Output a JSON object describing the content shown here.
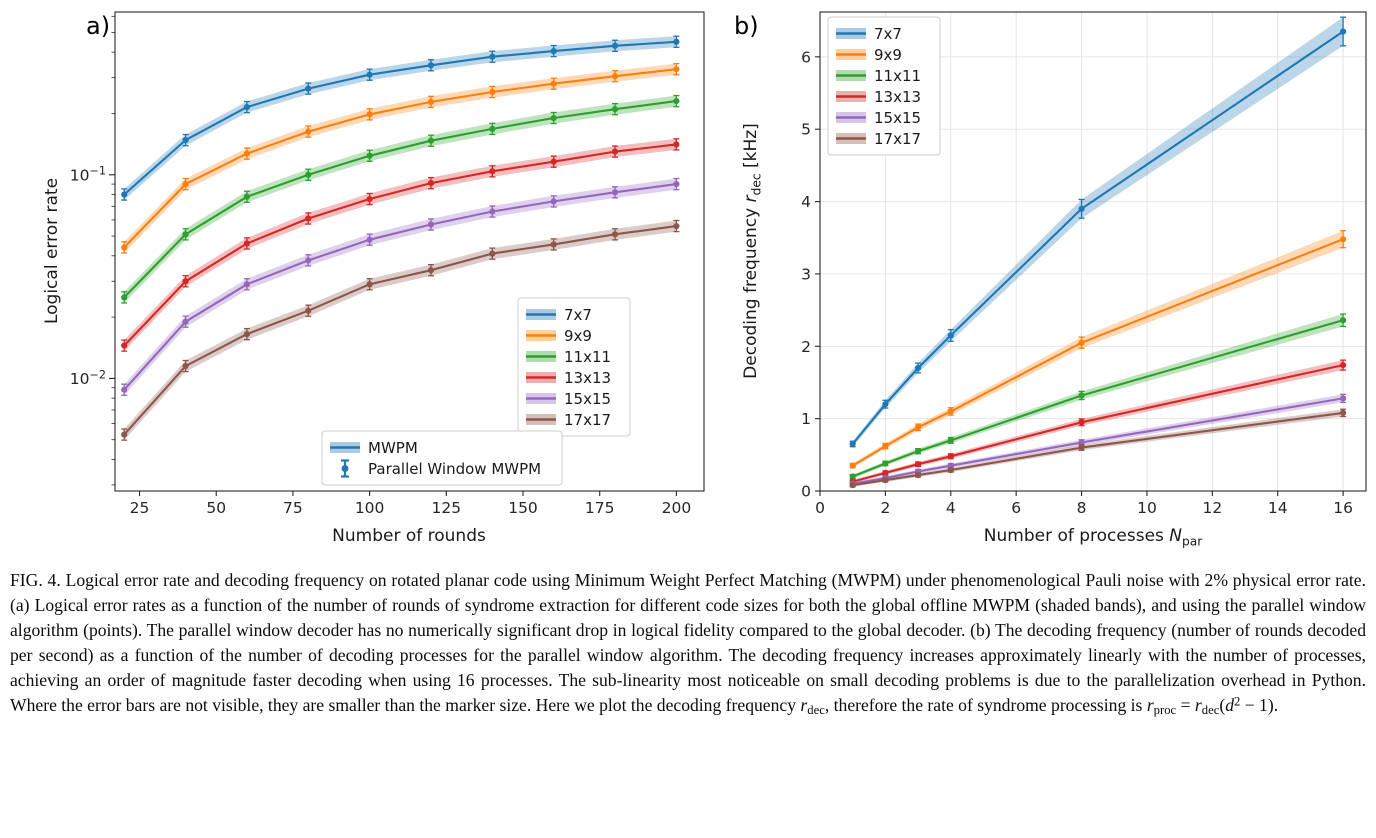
{
  "chart_data": [
    {
      "id": "a",
      "type": "line",
      "panel_label": "a)",
      "xlabel": "Number of rounds",
      "ylabel": "Logical error rate",
      "xscale": "linear",
      "yscale": "log",
      "xlim": [
        17,
        209
      ],
      "ylim": [
        0.0028,
        0.63
      ],
      "xticks": [
        25,
        50,
        75,
        100,
        125,
        150,
        175,
        200
      ],
      "yticks": [
        {
          "v": 0.01,
          "label": [
            {
              "t": "10",
              "s": ""
            },
            {
              "t": "−2",
              "s": "sup"
            }
          ]
        },
        {
          "v": 0.1,
          "label": [
            {
              "t": "10",
              "s": ""
            },
            {
              "t": "−1",
              "s": "sup"
            }
          ]
        }
      ],
      "grid": false,
      "x": [
        20,
        40,
        60,
        80,
        100,
        120,
        140,
        160,
        180,
        200
      ],
      "series": [
        {
          "name": "7x7",
          "color": "#1f77b4",
          "values": [
            0.08,
            0.148,
            0.215,
            0.265,
            0.31,
            0.345,
            0.38,
            0.405,
            0.43,
            0.45
          ]
        },
        {
          "name": "9x9",
          "color": "#ff7f0e",
          "values": [
            0.044,
            0.09,
            0.127,
            0.163,
            0.198,
            0.228,
            0.255,
            0.28,
            0.305,
            0.33
          ]
        },
        {
          "name": "11x11",
          "color": "#2ca02c",
          "values": [
            0.025,
            0.051,
            0.078,
            0.1,
            0.124,
            0.147,
            0.168,
            0.19,
            0.21,
            0.23
          ]
        },
        {
          "name": "13x13",
          "color": "#d62728",
          "values": [
            0.0145,
            0.03,
            0.046,
            0.061,
            0.076,
            0.091,
            0.104,
            0.116,
            0.13,
            0.141
          ]
        },
        {
          "name": "15x15",
          "color": "#9467bd",
          "values": [
            0.0088,
            0.019,
            0.029,
            0.038,
            0.048,
            0.057,
            0.066,
            0.074,
            0.082,
            0.09
          ]
        },
        {
          "name": "17x17",
          "color": "#8c564b",
          "values": [
            0.0053,
            0.0115,
            0.0165,
            0.0215,
            0.029,
            0.034,
            0.041,
            0.0455,
            0.051,
            0.056
          ]
        }
      ],
      "legend_extra": [
        {
          "label": "MWPM",
          "type": "band",
          "color": "#1f77b4"
        },
        {
          "label": "Parallel Window MWPM",
          "type": "errorbar",
          "color": "#1f77b4"
        }
      ]
    },
    {
      "id": "b",
      "type": "line",
      "panel_label": "b)",
      "xlabel": [
        {
          "t": "Number of processes ",
          "s": ""
        },
        {
          "t": "N",
          "s": "i"
        },
        {
          "t": "par",
          "s": "sub"
        }
      ],
      "ylabel": [
        {
          "t": "Decoding frequency ",
          "s": ""
        },
        {
          "t": "r",
          "s": "i"
        },
        {
          "t": "dec",
          "s": "sub"
        },
        {
          "t": " [kHz]",
          "s": ""
        }
      ],
      "xscale": "linear",
      "yscale": "linear",
      "xlim": [
        0,
        16.7
      ],
      "ylim": [
        0,
        6.62
      ],
      "xticks": [
        0,
        2,
        4,
        6,
        8,
        10,
        12,
        14,
        16
      ],
      "yticks": [
        {
          "v": 0,
          "label": "0"
        },
        {
          "v": 1,
          "label": "1"
        },
        {
          "v": 2,
          "label": "2"
        },
        {
          "v": 3,
          "label": "3"
        },
        {
          "v": 4,
          "label": "4"
        },
        {
          "v": 5,
          "label": "5"
        },
        {
          "v": 6,
          "label": "6"
        }
      ],
      "grid": true,
      "x": [
        1,
        2,
        3,
        4,
        8,
        16
      ],
      "series": [
        {
          "name": "7x7",
          "color": "#1f77b4",
          "values": [
            0.65,
            1.2,
            1.7,
            2.15,
            3.9,
            6.35
          ]
        },
        {
          "name": "9x9",
          "color": "#ff7f0e",
          "values": [
            0.35,
            0.62,
            0.88,
            1.1,
            2.05,
            3.48
          ]
        },
        {
          "name": "11x11",
          "color": "#2ca02c",
          "values": [
            0.2,
            0.38,
            0.55,
            0.7,
            1.32,
            2.36
          ]
        },
        {
          "name": "13x13",
          "color": "#d62728",
          "values": [
            0.13,
            0.25,
            0.37,
            0.48,
            0.95,
            1.74
          ]
        },
        {
          "name": "15x15",
          "color": "#9467bd",
          "values": [
            0.1,
            0.18,
            0.27,
            0.35,
            0.67,
            1.28
          ]
        },
        {
          "name": "17x17",
          "color": "#8c564b",
          "values": [
            0.08,
            0.15,
            0.22,
            0.29,
            0.6,
            1.08
          ]
        }
      ]
    }
  ],
  "caption_segments": [
    {
      "t": "FIG. 4.  Logical error rate and decoding frequency on rotated planar code using Minimum Weight Perfect Matching (MWPM) under phenomenological Pauli noise with 2% physical error rate. (a) Logical error rates as a function of the number of rounds of syndrome extraction for different code sizes for both the global offline MWPM (shaded bands), and using the parallel window algorithm (points). The parallel window decoder has no numerically significant drop in logical fidelity compared to the global decoder. (b) The decoding frequency (number of rounds decoded per second) as a function of the number of decoding processes for the parallel window algorithm. The decoding frequency increases approximately linearly with the number of processes, achieving an order of magnitude faster decoding when using 16 processes. The sub-linearity most noticeable on small decoding problems is due to the parallelization overhead in Python. Where the error bars are not visible, they are smaller than the marker size. Here we plot the decoding frequency ",
      "s": ""
    },
    {
      "t": "r",
      "s": "i"
    },
    {
      "t": "dec",
      "s": "sub"
    },
    {
      "t": ", therefore the rate of syndrome processing is ",
      "s": ""
    },
    {
      "t": "r",
      "s": "i"
    },
    {
      "t": "proc",
      "s": "sub"
    },
    {
      "t": " = ",
      "s": ""
    },
    {
      "t": "r",
      "s": "i"
    },
    {
      "t": "dec",
      "s": "sub"
    },
    {
      "t": "(",
      "s": ""
    },
    {
      "t": "d",
      "s": "i"
    },
    {
      "t": "2",
      "s": "sup"
    },
    {
      "t": " − 1).",
      "s": ""
    }
  ]
}
